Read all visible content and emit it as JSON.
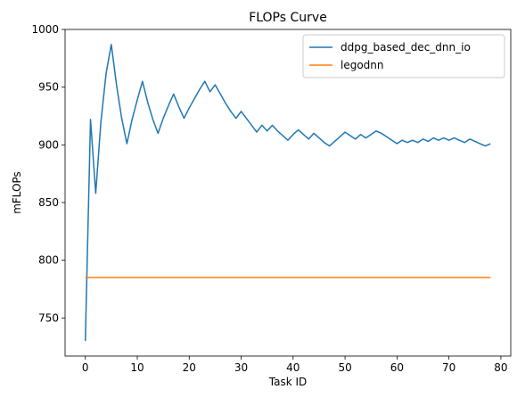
{
  "chart_data": {
    "type": "line",
    "title": "FLOPs Curve",
    "xlabel": "Task ID",
    "ylabel": "mFLOPs",
    "xlim": [
      -3.9,
      81.9
    ],
    "ylim": [
      717,
      1000
    ],
    "xticks": [
      0,
      10,
      20,
      30,
      40,
      50,
      60,
      70,
      80
    ],
    "yticks": [
      750,
      800,
      850,
      900,
      950,
      1000
    ],
    "grid": false,
    "legend": "top-right",
    "colors": {
      "ddpg": "#1f77b4",
      "legodnn": "#ff7f0e"
    },
    "series": [
      {
        "name": "ddpg_based_dec_dnn_io",
        "color": "#1f77b4",
        "x": [
          0,
          1,
          2,
          3,
          4,
          5,
          6,
          7,
          8,
          9,
          10,
          11,
          12,
          13,
          14,
          15,
          16,
          17,
          18,
          19,
          20,
          21,
          22,
          23,
          24,
          25,
          26,
          27,
          28,
          29,
          30,
          31,
          32,
          33,
          34,
          35,
          36,
          37,
          38,
          39,
          40,
          41,
          42,
          43,
          44,
          45,
          46,
          47,
          48,
          49,
          50,
          51,
          52,
          53,
          54,
          55,
          56,
          57,
          58,
          59,
          60,
          61,
          62,
          63,
          64,
          65,
          66,
          67,
          68,
          69,
          70,
          71,
          72,
          73,
          74,
          75,
          76,
          77,
          78
        ],
        "y": [
          730,
          922,
          858,
          920,
          962,
          987,
          952,
          923,
          901,
          922,
          939,
          955,
          937,
          922,
          910,
          923,
          934,
          944,
          933,
          923,
          932,
          940,
          948,
          955,
          946,
          952,
          944,
          936,
          929,
          923,
          929,
          923,
          917,
          911,
          917,
          912,
          917,
          912,
          908,
          904,
          909,
          913,
          909,
          905,
          910,
          906,
          902,
          899,
          903,
          907,
          911,
          908,
          905,
          909,
          906,
          909,
          912,
          910,
          907,
          904,
          901,
          904,
          902,
          904,
          902,
          905,
          903,
          906,
          904,
          906,
          904,
          906,
          904,
          902,
          905,
          903,
          901,
          899,
          901
        ]
      },
      {
        "name": "legodnn",
        "color": "#ff7f0e",
        "x": [
          0,
          78
        ],
        "y": [
          785,
          785
        ]
      }
    ]
  }
}
